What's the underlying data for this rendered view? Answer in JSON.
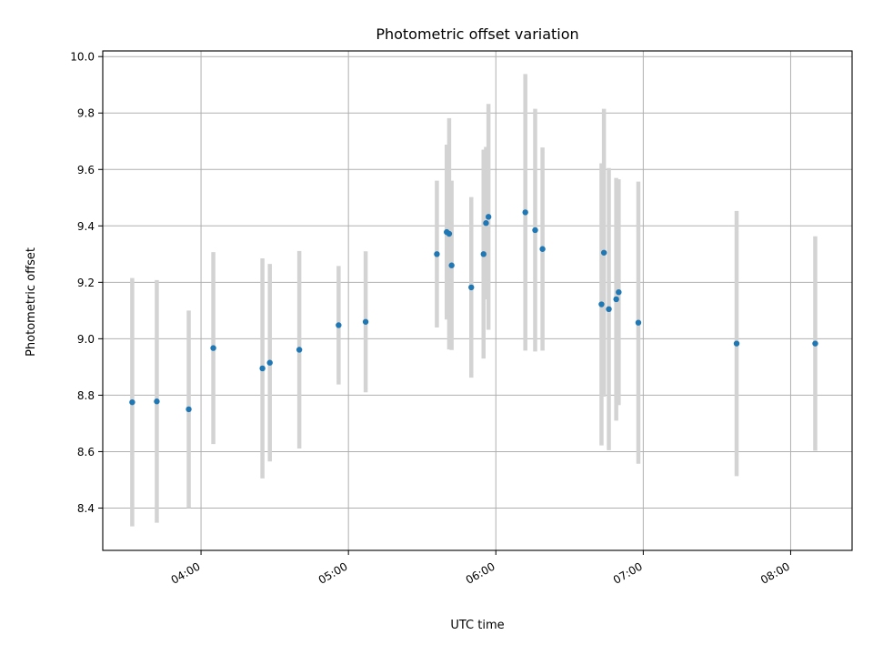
{
  "chart_data": {
    "type": "scatter",
    "title": "Photometric offset variation",
    "xlabel": "UTC time",
    "ylabel": "Photometric offset",
    "xlim": [
      "03:20",
      "08:25"
    ],
    "ylim": [
      8.25,
      10.02
    ],
    "grid": true,
    "x_ticks": [
      "04:00",
      "05:00",
      "06:00",
      "07:00",
      "08:00"
    ],
    "y_ticks": [
      "8.4",
      "8.6",
      "8.8",
      "9.0",
      "9.2",
      "9.4",
      "9.6",
      "9.8",
      "10.0"
    ],
    "colors": {
      "marker": "#1f77b4",
      "errorbar": "#d3d3d3",
      "grid": "#b0b0b0"
    },
    "points": [
      {
        "x": "03:32",
        "y": 8.775,
        "err": 0.44
      },
      {
        "x": "03:42",
        "y": 8.778,
        "err": 0.43
      },
      {
        "x": "03:55",
        "y": 8.75,
        "err": 0.35
      },
      {
        "x": "04:05",
        "y": 8.967,
        "err": 0.34
      },
      {
        "x": "04:25",
        "y": 8.895,
        "err": 0.39
      },
      {
        "x": "04:28",
        "y": 8.915,
        "err": 0.35
      },
      {
        "x": "04:40",
        "y": 8.961,
        "err": 0.35
      },
      {
        "x": "04:56",
        "y": 9.048,
        "err": 0.21
      },
      {
        "x": "05:07",
        "y": 9.06,
        "err": 0.25
      },
      {
        "x": "05:36",
        "y": 9.3,
        "err": 0.26
      },
      {
        "x": "05:40",
        "y": 9.378,
        "err": 0.31
      },
      {
        "x": "05:41",
        "y": 9.372,
        "err": 0.41
      },
      {
        "x": "05:42",
        "y": 9.26,
        "err": 0.3
      },
      {
        "x": "05:50",
        "y": 9.182,
        "err": 0.32
      },
      {
        "x": "05:55",
        "y": 9.3,
        "err": 0.37
      },
      {
        "x": "05:56",
        "y": 9.41,
        "err": 0.27
      },
      {
        "x": "05:57",
        "y": 9.432,
        "err": 0.4
      },
      {
        "x": "06:12",
        "y": 9.448,
        "err": 0.49
      },
      {
        "x": "06:16",
        "y": 9.385,
        "err": 0.43
      },
      {
        "x": "06:19",
        "y": 9.318,
        "err": 0.36
      },
      {
        "x": "06:43",
        "y": 9.122,
        "err": 0.5
      },
      {
        "x": "06:44",
        "y": 9.305,
        "err": 0.51
      },
      {
        "x": "06:46",
        "y": 9.105,
        "err": 0.5
      },
      {
        "x": "06:49",
        "y": 9.14,
        "err": 0.43
      },
      {
        "x": "06:50",
        "y": 9.165,
        "err": 0.4
      },
      {
        "x": "06:58",
        "y": 9.057,
        "err": 0.5
      },
      {
        "x": "07:38",
        "y": 8.983,
        "err": 0.47
      },
      {
        "x": "08:10",
        "y": 8.983,
        "err": 0.38
      }
    ]
  }
}
